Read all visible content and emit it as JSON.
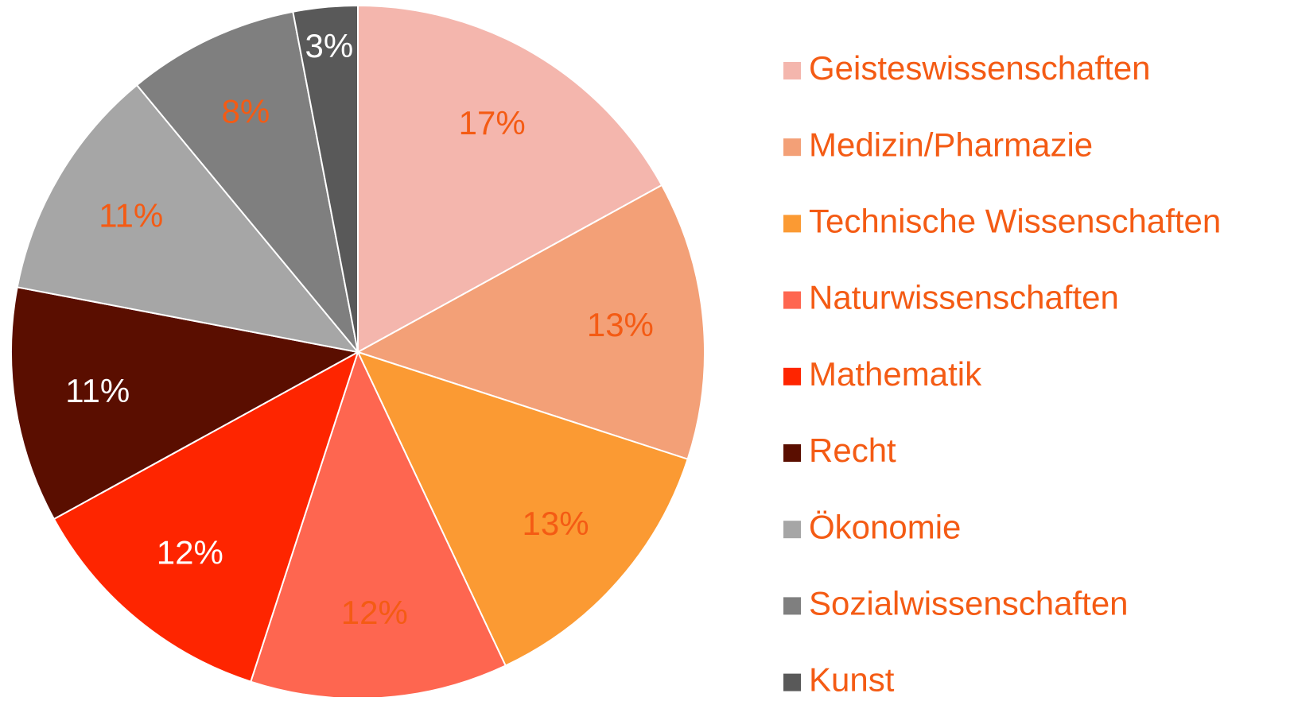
{
  "chart_data": {
    "type": "pie",
    "categories": [
      "Geisteswissenschaften",
      "Medizin/Pharmazie",
      "Technische Wissenschaften",
      "Naturwissenschaften",
      "Mathematik",
      "Recht",
      "Ökonomie",
      "Sozialwissenschaften",
      "Kunst"
    ],
    "values": [
      17,
      13,
      13,
      12,
      12,
      11,
      11,
      8,
      3
    ],
    "value_labels": [
      "17%",
      "13%",
      "13%",
      "12%",
      "12%",
      "11%",
      "11%",
      "8%",
      "3%"
    ],
    "colors": [
      "#f4b6ad",
      "#f3a077",
      "#fb9a33",
      "#fe6650",
      "#fe2500",
      "#5a0e00",
      "#a6a6a6",
      "#7f7f7f",
      "#595959"
    ],
    "label_colors": [
      "#f45b14",
      "#f45b14",
      "#f45b14",
      "#f45b14",
      "#ffffff",
      "#ffffff",
      "#f45b14",
      "#f45b14",
      "#ffffff"
    ],
    "legend_text_color": "#f45b14",
    "legend": "right"
  }
}
